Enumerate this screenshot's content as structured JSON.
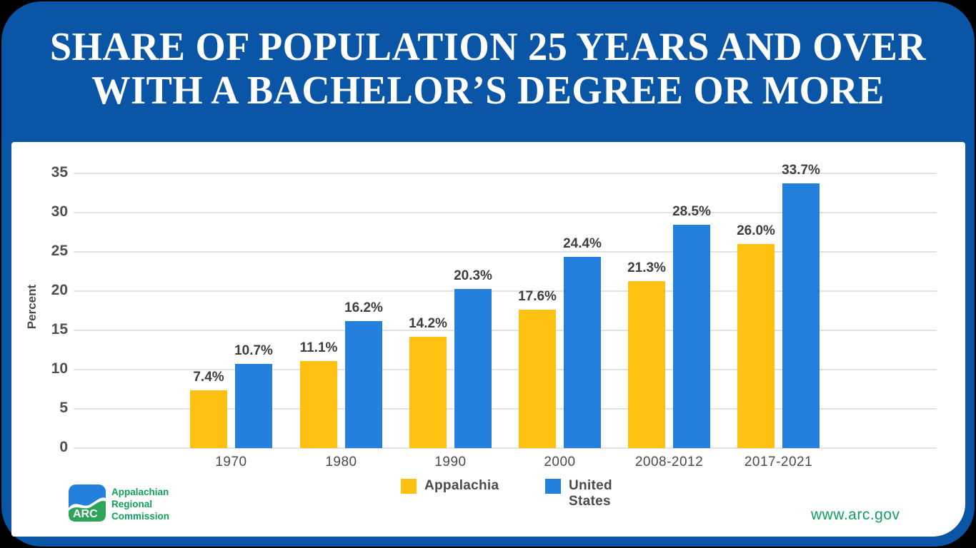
{
  "header": {
    "title_line1": "SHARE OF POPULATION 25 YEARS AND OVER",
    "title_line2": "WITH A BACHELOR’S DEGREE OR MORE"
  },
  "chart_data": {
    "type": "bar",
    "title": "Share of Population 25 Years and Over with a Bachelor’s Degree or More",
    "categories": [
      "1970",
      "1980",
      "1990",
      "2000",
      "2008-2012",
      "2017-2021"
    ],
    "series": [
      {
        "name": "Appalachia",
        "color": "#FEC111",
        "values": [
          7.4,
          11.1,
          14.2,
          17.6,
          21.3,
          26.0
        ],
        "labels": [
          "7.4%",
          "11.1%",
          "14.2%",
          "17.6%",
          "21.3%",
          "26.0%"
        ]
      },
      {
        "name": "United States",
        "color": "#2380DC",
        "values": [
          10.7,
          16.2,
          20.3,
          24.4,
          28.5,
          33.7
        ],
        "labels": [
          "10.7%",
          "16.2%",
          "20.3%",
          "24.4%",
          "28.5%",
          "33.7%"
        ]
      }
    ],
    "xlabel": "",
    "ylabel": "Percent",
    "yticks": [
      0,
      5,
      10,
      15,
      20,
      25,
      30,
      35
    ],
    "ylim": [
      0,
      35
    ],
    "grid": true,
    "legend_position": "bottom"
  },
  "footer": {
    "logo": {
      "arc_label": "ARC",
      "org_line1": "Appalachian",
      "org_line2": "Regional",
      "org_line3": "Commission"
    },
    "website": "www.arc.gov"
  },
  "colors": {
    "frame_blue": "#0A55A5",
    "bar_yellow": "#FEC111",
    "bar_blue": "#2380DC",
    "gridline": "#E2E2E2",
    "tick_text": "#4F4F4F",
    "value_text": "#3E3E3E",
    "green_text": "#10A05C",
    "logo_green": "#2EA45B",
    "card_white": "#FFFFFF"
  }
}
